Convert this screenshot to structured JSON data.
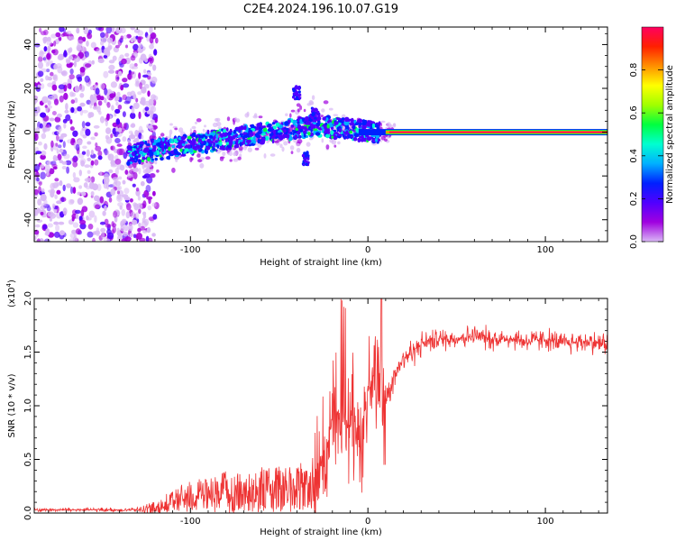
{
  "title": "C2E4.2024.196.10.07.G19",
  "colors": {
    "snr_line": "#ee3333",
    "axis": "#000000",
    "colormap": [
      "#d9b8f5",
      "#a000e0",
      "#5000ff",
      "#0020ff",
      "#00b0ff",
      "#00ffd0",
      "#00ff40",
      "#a0ff00",
      "#ffff00",
      "#ff9000",
      "#ff2000",
      "#ff0060"
    ]
  },
  "chart_data": [
    {
      "type": "heatmap",
      "name": "spectrogram",
      "xlabel": "Height of straight line (km)",
      "ylabel": "Frequency (Hz)",
      "xlim": [
        -188,
        135
      ],
      "ylim": [
        -50,
        48
      ],
      "xticks": [
        -100,
        0,
        100
      ],
      "xtick_labels": [
        "-100",
        "0",
        "100"
      ],
      "yticks": [
        -40,
        -20,
        0,
        20,
        40
      ],
      "ytick_labels": [
        "-40",
        "-20",
        "0",
        "20",
        "40"
      ],
      "trend": {
        "noise_region_x": [
          -188,
          -125
        ],
        "trend_line_x": [
          -135,
          -30,
          5,
          135
        ],
        "trend_line_y": [
          -10,
          3,
          0,
          0
        ],
        "clean_region_x": [
          10,
          135
        ]
      },
      "colorbar": {
        "label": "Normalized spectral amplitude",
        "range": [
          0,
          1
        ],
        "ticks": [
          0.0,
          0.2,
          0.4,
          0.6,
          0.8
        ],
        "tick_labels": [
          "0.0",
          "0.2",
          "0.4",
          "0.6",
          "0.8"
        ]
      }
    },
    {
      "type": "line",
      "name": "snr",
      "xlabel": "Height of straight line (km)",
      "ylabel": "SNR (10 * v/v)",
      "ymultiplier_label": "(x10",
      "ymultiplier_exp": "4",
      "ymultiplier_close": ")",
      "xlim": [
        -188,
        135
      ],
      "ylim": [
        0,
        2.0
      ],
      "xticks": [
        -100,
        0,
        100
      ],
      "xtick_labels": [
        "-100",
        "0",
        "100"
      ],
      "yticks": [
        0,
        0.5,
        1.0,
        1.5,
        2.0
      ],
      "ytick_labels": [
        "0.0",
        "0.5",
        "1.0",
        "1.5",
        "2.0"
      ],
      "series": [
        {
          "name": "SNR",
          "x": [
            -188,
            -160,
            -130,
            -120,
            -110,
            -100,
            -90,
            -80,
            -70,
            -60,
            -50,
            -40,
            -30,
            -25,
            -20,
            -15,
            -10,
            -7,
            -5,
            0,
            3,
            6,
            10,
            15,
            20,
            25,
            30,
            40,
            50,
            60,
            70,
            80,
            90,
            100,
            110,
            120,
            135
          ],
          "y": [
            0.03,
            0.03,
            0.03,
            0.06,
            0.12,
            0.18,
            0.18,
            0.22,
            0.2,
            0.24,
            0.24,
            0.25,
            0.3,
            0.5,
            0.8,
            1.0,
            0.8,
            1.0,
            0.6,
            1.15,
            1.2,
            1.05,
            1.05,
            1.3,
            1.45,
            1.5,
            1.58,
            1.62,
            1.63,
            1.65,
            1.62,
            1.63,
            1.6,
            1.62,
            1.58,
            1.6,
            1.58
          ]
        }
      ]
    }
  ]
}
